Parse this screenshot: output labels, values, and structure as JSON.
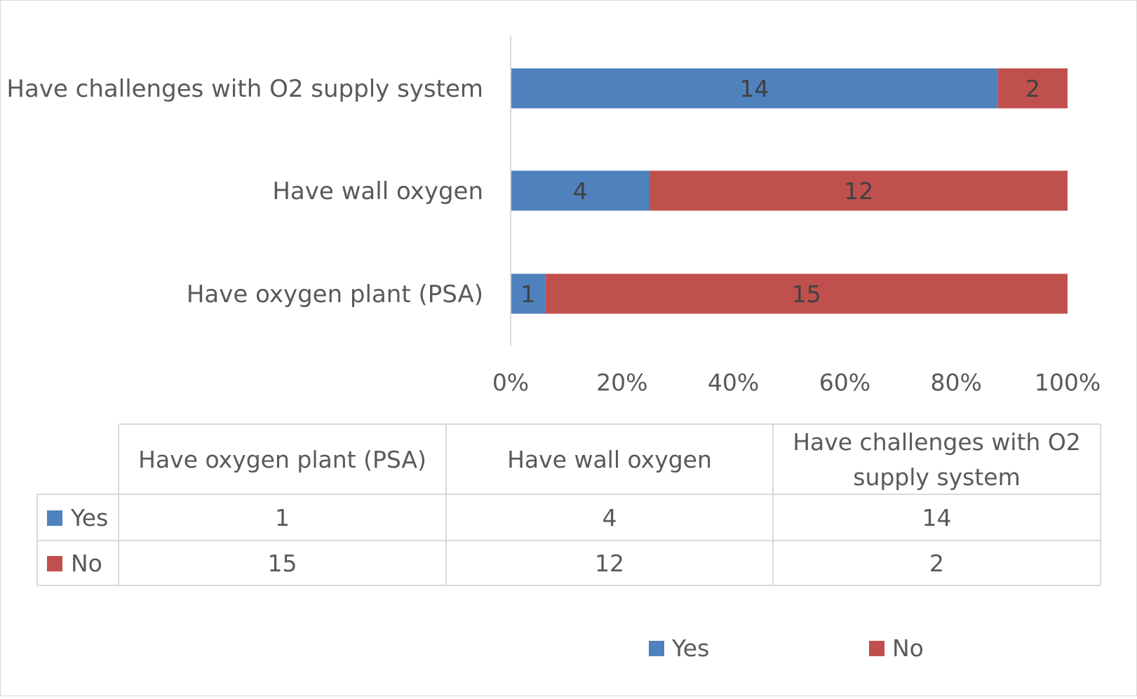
{
  "chart_data": {
    "type": "bar",
    "orientation": "horizontal",
    "stacking": "percent",
    "categories": [
      "Have oxygen plant (PSA)",
      "Have wall oxygen",
      "Have challenges with O2 supply system"
    ],
    "series": [
      {
        "name": "Yes",
        "values": [
          1,
          4,
          14
        ],
        "color": "#4f81bd"
      },
      {
        "name": "No",
        "values": [
          15,
          12,
          2
        ],
        "color": "#c0504d"
      }
    ],
    "x_ticks": [
      "0%",
      "20%",
      "40%",
      "60%",
      "80%",
      "100%"
    ],
    "xlim": [
      0,
      100
    ],
    "data_labels": true,
    "data_table": true,
    "legend_position": "bottom",
    "grid": false
  }
}
